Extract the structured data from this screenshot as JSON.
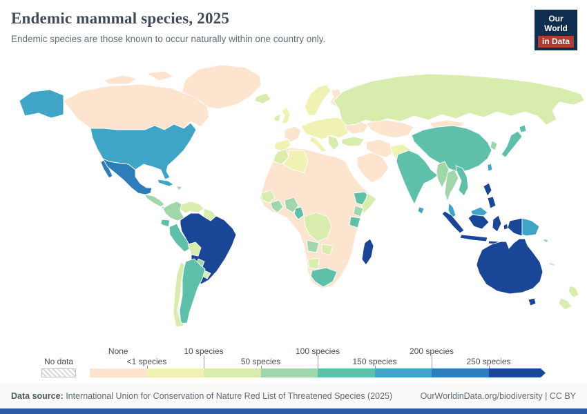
{
  "header": {
    "title": "Endemic mammal species, 2025",
    "subtitle": "Endemic species are those known to occur naturally within one country only.",
    "logo_line1": "Our World",
    "logo_line2": "in Data"
  },
  "legend": {
    "no_data_label": "No data"
  },
  "footer": {
    "data_source_label": "Data source:",
    "data_source_text": " International Union for Conservation of Nature Red List of Threatened Species (2025)",
    "link_text": "OurWorldinData.org/biodiversity | CC BY"
  },
  "colors": {
    "logo_bg": "#0f2d4e",
    "logo_accent": "#b23b32",
    "bottom_bar": "#2d5ba6"
  },
  "chart_data": {
    "type": "heatmap",
    "variant": "world-choropleth",
    "title": "Endemic mammal species, 2025",
    "subtitle": "Endemic species are those known to occur naturally within one country only.",
    "legend_position": "bottom",
    "no_data_label": "No data",
    "bins": [
      {
        "label": "None",
        "row": "top",
        "color": "#fce4cf"
      },
      {
        "label": "<1 species",
        "row": "bottom",
        "color": "#f0f2b4"
      },
      {
        "label": "10 species",
        "row": "top",
        "color": "#d8ecae"
      },
      {
        "label": "50 species",
        "row": "bottom",
        "color": "#9fd6aa"
      },
      {
        "label": "100 species",
        "row": "top",
        "color": "#5fc0a9"
      },
      {
        "label": "150 species",
        "row": "bottom",
        "color": "#3fa5c7"
      },
      {
        "label": "200 species",
        "row": "top",
        "color": "#2d7dbb"
      },
      {
        "label": "250 species",
        "row": "bottom",
        "color": "#1a4698"
      }
    ],
    "countries": {
      "greenland": 0,
      "canada": 0,
      "arctic_islands": 0,
      "alaska": 5,
      "usa": 5,
      "mexico": 6,
      "baja_california": 6,
      "guatemala": 3,
      "panama": 4,
      "cuba": 5,
      "hispaniola": 3,
      "colombia": 3,
      "venezuela": 2,
      "guyanas": 2,
      "ecuador": 4,
      "peru": 4,
      "brazil": 7,
      "bolivia": 2,
      "paraguay": 3,
      "uruguay": 2,
      "argentina": 4,
      "chile": 2,
      "iceland": 2,
      "uk": 1,
      "ireland": 2,
      "scandinavia": 1,
      "finland": 0,
      "france": 0,
      "iberia": 1,
      "central_europe": 1,
      "italy": 1,
      "balkans": 2,
      "ukraine": 0,
      "russia": 2,
      "kazakhstan": 0,
      "turkey": 2,
      "iran": 0,
      "afghanistan": 1,
      "saudi_arabia": 0,
      "north_africa": 0,
      "morocco": 2,
      "algeria": 1,
      "guinea": 2,
      "ghana": 3,
      "nigeria": 3,
      "cameroon": 4,
      "ethiopia": 4,
      "somalia": 2,
      "kenya": 3,
      "tanzania": 4,
      "dr_congo": 2,
      "angola": 3,
      "zambia": 2,
      "namibia": 2,
      "south_africa": 4,
      "madagascar": 7,
      "india": 4,
      "sri_lanka": 5,
      "china": 4,
      "mongolia": 0,
      "korea": 3,
      "japan": 4,
      "myanmar": 3,
      "thailand": 3,
      "vietnam": 4,
      "malaysia": 5,
      "sumatra": 7,
      "java": 7,
      "borneo_malaysia": 5,
      "borneo_indonesia": 7,
      "sulawesi": 7,
      "lesser_sunda": 7,
      "maluku": 7,
      "west_papua": 7,
      "papua_new_guinea": 5,
      "philippines": 7,
      "taiwan": 5,
      "solomon_islands": 3,
      "new_caledonia": 2,
      "australia": 7,
      "tasmania": 7,
      "new_zealand": 2
    }
  }
}
